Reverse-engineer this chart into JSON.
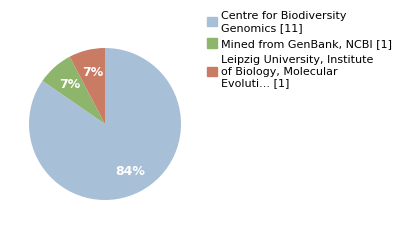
{
  "slices": [
    11,
    1,
    1
  ],
  "labels": [
    "Centre for Biodiversity\nGenomics [11]",
    "Mined from GenBank, NCBI [1]",
    "Leipzig University, Institute\nof Biology, Molecular\nEvoluti... [1]"
  ],
  "colors": [
    "#a8bfd8",
    "#8db56b",
    "#c97b63"
  ],
  "autopct_labels": [
    "84%",
    "7%",
    "7%"
  ],
  "startangle": 90,
  "background_color": "#ffffff",
  "text_color": "#ffffff",
  "legend_fontsize": 8.0
}
